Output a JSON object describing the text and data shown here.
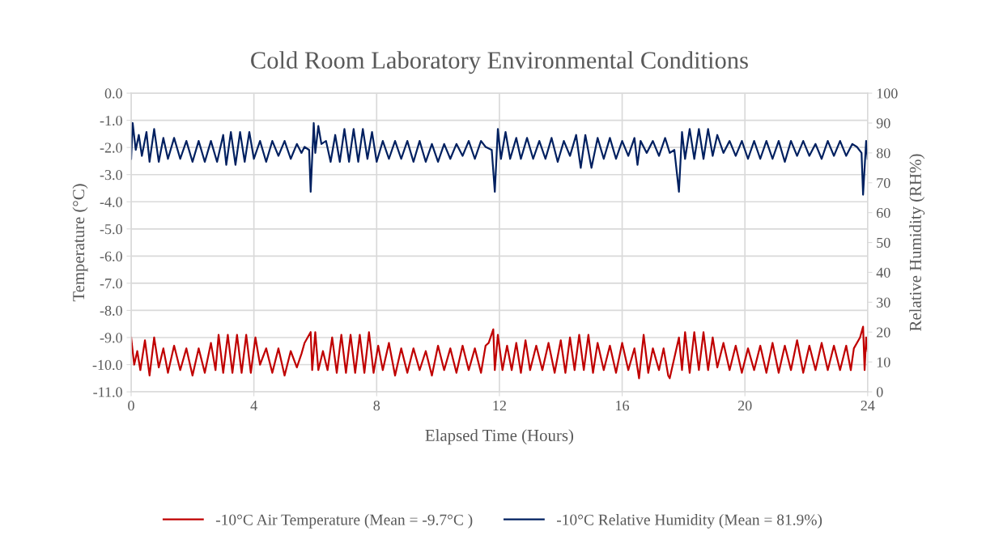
{
  "chart_data": {
    "type": "line",
    "title": "Cold Room Laboratory Environmental Conditions",
    "xlabel": "Elapsed Time (Hours)",
    "ylabel": "Temperature (°C)",
    "y2label": "Relative Humidity (RH%)",
    "xlim": [
      0,
      24
    ],
    "xticks": [
      0,
      4,
      8,
      12,
      16,
      20,
      24
    ],
    "ylim": [
      -11,
      0
    ],
    "yticks": [
      {
        "value": 0,
        "label": "0.0"
      },
      {
        "value": -1,
        "label": "-1.0"
      },
      {
        "value": -2,
        "label": "-2.0"
      },
      {
        "value": -3,
        "label": "-3.0"
      },
      {
        "value": -4,
        "label": "-4.0"
      },
      {
        "value": -5,
        "label": "-5.0"
      },
      {
        "value": -6,
        "label": "-6.0"
      },
      {
        "value": -7,
        "label": "-7.0"
      },
      {
        "value": -8,
        "label": "-8.0"
      },
      {
        "value": -9,
        "label": "-9.0"
      },
      {
        "value": -10,
        "label": "-10.0"
      },
      {
        "value": -11,
        "label": "-11.0"
      }
    ],
    "y2lim": [
      0,
      100
    ],
    "y2ticks": [
      0,
      10,
      20,
      30,
      40,
      50,
      60,
      70,
      80,
      90,
      100
    ],
    "grid": true,
    "legend": "bottom",
    "marker": "none",
    "line_style": "solid",
    "series": [
      {
        "name": "-10°C Air Temperature (Mean = -9.7°C )",
        "color": "#c00000",
        "x": [
          0,
          0.1,
          0.2,
          0.3,
          0.45,
          0.6,
          0.75,
          0.9,
          1.05,
          1.2,
          1.4,
          1.6,
          1.8,
          2.0,
          2.2,
          2.4,
          2.6,
          2.75,
          2.85,
          3.0,
          3.15,
          3.3,
          3.45,
          3.6,
          3.75,
          3.9,
          4.05,
          4.2,
          4.4,
          4.6,
          4.8,
          5.0,
          5.2,
          5.4,
          5.55,
          5.65,
          5.85,
          5.9,
          6.0,
          6.1,
          6.25,
          6.4,
          6.55,
          6.7,
          6.85,
          7.0,
          7.15,
          7.3,
          7.45,
          7.6,
          7.75,
          7.9,
          8.05,
          8.2,
          8.4,
          8.6,
          8.8,
          9.0,
          9.2,
          9.4,
          9.6,
          9.8,
          10.0,
          10.2,
          10.4,
          10.6,
          10.8,
          11.0,
          11.2,
          11.4,
          11.55,
          11.65,
          11.8,
          11.85,
          11.95,
          12.1,
          12.25,
          12.4,
          12.55,
          12.7,
          12.85,
          13.0,
          13.2,
          13.4,
          13.6,
          13.8,
          14.0,
          14.15,
          14.3,
          14.45,
          14.6,
          14.75,
          14.9,
          15.05,
          15.2,
          15.4,
          15.6,
          15.8,
          16.0,
          16.2,
          16.4,
          16.55,
          16.7,
          16.85,
          17.0,
          17.2,
          17.35,
          17.5,
          17.55,
          17.75,
          17.85,
          17.95,
          18.05,
          18.2,
          18.35,
          18.5,
          18.65,
          18.8,
          18.95,
          19.1,
          19.3,
          19.5,
          19.7,
          19.9,
          20.1,
          20.3,
          20.5,
          20.7,
          20.9,
          21.1,
          21.3,
          21.5,
          21.7,
          21.9,
          22.1,
          22.3,
          22.5,
          22.7,
          22.9,
          23.1,
          23.3,
          23.45,
          23.55,
          23.75,
          23.85,
          23.9,
          23.95,
          24.0
        ],
        "values": [
          -9.0,
          -10.0,
          -9.5,
          -10.2,
          -9.1,
          -10.4,
          -9.0,
          -10.1,
          -9.4,
          -10.3,
          -9.3,
          -10.2,
          -9.4,
          -10.4,
          -9.4,
          -10.3,
          -9.2,
          -10.2,
          -8.9,
          -10.3,
          -8.9,
          -10.3,
          -8.9,
          -10.3,
          -8.9,
          -10.3,
          -9.0,
          -10.0,
          -9.4,
          -10.3,
          -9.4,
          -10.4,
          -9.5,
          -10.1,
          -9.6,
          -9.2,
          -8.8,
          -10.2,
          -8.8,
          -10.2,
          -9.5,
          -10.2,
          -9.0,
          -10.3,
          -8.9,
          -10.3,
          -8.9,
          -10.3,
          -8.9,
          -10.3,
          -8.8,
          -10.3,
          -9.3,
          -10.2,
          -9.2,
          -10.4,
          -9.4,
          -10.3,
          -9.4,
          -10.2,
          -9.5,
          -10.4,
          -9.3,
          -10.2,
          -9.4,
          -10.3,
          -9.3,
          -10.2,
          -9.4,
          -10.3,
          -9.3,
          -9.2,
          -8.7,
          -10.2,
          -8.9,
          -10.2,
          -9.3,
          -10.2,
          -9.2,
          -10.3,
          -9.1,
          -10.2,
          -9.3,
          -10.2,
          -9.2,
          -10.3,
          -9.1,
          -10.3,
          -9.0,
          -10.2,
          -8.9,
          -10.2,
          -8.9,
          -10.3,
          -9.2,
          -10.2,
          -9.3,
          -10.3,
          -9.2,
          -10.2,
          -9.4,
          -10.5,
          -8.9,
          -10.3,
          -9.4,
          -10.2,
          -9.4,
          -10.4,
          -10.5,
          -9.5,
          -9.0,
          -10.2,
          -8.8,
          -10.3,
          -8.8,
          -10.2,
          -8.8,
          -10.2,
          -9.0,
          -10.1,
          -9.2,
          -10.2,
          -9.3,
          -10.3,
          -9.4,
          -10.2,
          -9.3,
          -10.3,
          -9.2,
          -10.3,
          -9.3,
          -10.2,
          -9.1,
          -10.3,
          -9.3,
          -10.2,
          -9.2,
          -10.2,
          -9.3,
          -10.2,
          -9.3,
          -10.2,
          -9.4,
          -9.0,
          -8.6,
          -10.2,
          -9.0,
          -9.5
        ]
      },
      {
        "name": "-10°C Relative Humidity (Mean = 81.9%)",
        "color": "#002060",
        "axis": "y2",
        "x": [
          0,
          0.05,
          0.15,
          0.25,
          0.35,
          0.5,
          0.6,
          0.75,
          0.9,
          1.05,
          1.2,
          1.4,
          1.6,
          1.8,
          2.0,
          2.2,
          2.4,
          2.6,
          2.8,
          3.0,
          3.1,
          3.25,
          3.4,
          3.55,
          3.7,
          3.85,
          4.0,
          4.2,
          4.4,
          4.6,
          4.8,
          5.0,
          5.2,
          5.4,
          5.55,
          5.65,
          5.8,
          5.85,
          5.95,
          6.0,
          6.1,
          6.2,
          6.35,
          6.5,
          6.65,
          6.8,
          6.95,
          7.1,
          7.25,
          7.4,
          7.55,
          7.7,
          7.85,
          8.0,
          8.2,
          8.4,
          8.6,
          8.8,
          9.0,
          9.2,
          9.4,
          9.6,
          9.8,
          10.0,
          10.2,
          10.4,
          10.6,
          10.8,
          11.0,
          11.2,
          11.4,
          11.55,
          11.75,
          11.85,
          11.95,
          12.05,
          12.2,
          12.35,
          12.55,
          12.7,
          12.9,
          13.1,
          13.3,
          13.5,
          13.7,
          13.9,
          14.1,
          14.3,
          14.5,
          14.65,
          14.8,
          15.0,
          15.2,
          15.4,
          15.6,
          15.8,
          16.0,
          16.2,
          16.4,
          16.5,
          16.6,
          16.8,
          17.0,
          17.2,
          17.4,
          17.55,
          17.7,
          17.85,
          17.95,
          18.05,
          18.2,
          18.35,
          18.5,
          18.65,
          18.8,
          18.95,
          19.1,
          19.3,
          19.5,
          19.7,
          19.9,
          20.1,
          20.3,
          20.5,
          20.7,
          20.9,
          21.1,
          21.3,
          21.5,
          21.7,
          21.9,
          22.1,
          22.3,
          22.5,
          22.7,
          22.9,
          23.1,
          23.3,
          23.5,
          23.65,
          23.8,
          23.85,
          23.95,
          24.0
        ],
        "values": [
          78,
          90,
          81,
          86,
          79,
          87,
          77,
          88,
          77,
          85,
          78,
          85,
          78,
          84,
          77,
          84,
          77,
          84,
          77,
          86,
          76,
          87,
          76,
          87,
          77,
          87,
          78,
          84,
          77,
          84,
          79,
          84,
          78,
          83,
          80,
          82,
          81,
          67,
          90,
          80,
          89,
          83,
          84,
          77,
          86,
          77,
          88,
          77,
          88,
          77,
          88,
          78,
          87,
          77,
          84,
          78,
          84,
          78,
          84,
          77,
          84,
          77,
          83,
          77,
          83,
          78,
          83,
          79,
          84,
          78,
          84,
          82,
          81,
          67,
          88,
          78,
          87,
          78,
          85,
          78,
          85,
          78,
          84,
          78,
          85,
          77,
          84,
          79,
          86,
          75,
          86,
          75,
          85,
          78,
          85,
          78,
          84,
          79,
          85,
          76,
          84,
          80,
          84,
          79,
          85,
          80,
          81,
          67,
          87,
          78,
          88,
          78,
          88,
          78,
          88,
          79,
          86,
          80,
          84,
          79,
          84,
          78,
          84,
          78,
          84,
          78,
          84,
          77,
          84,
          79,
          84,
          79,
          83,
          78,
          84,
          79,
          84,
          79,
          83,
          82,
          80,
          66,
          84,
          78
        ]
      }
    ]
  }
}
